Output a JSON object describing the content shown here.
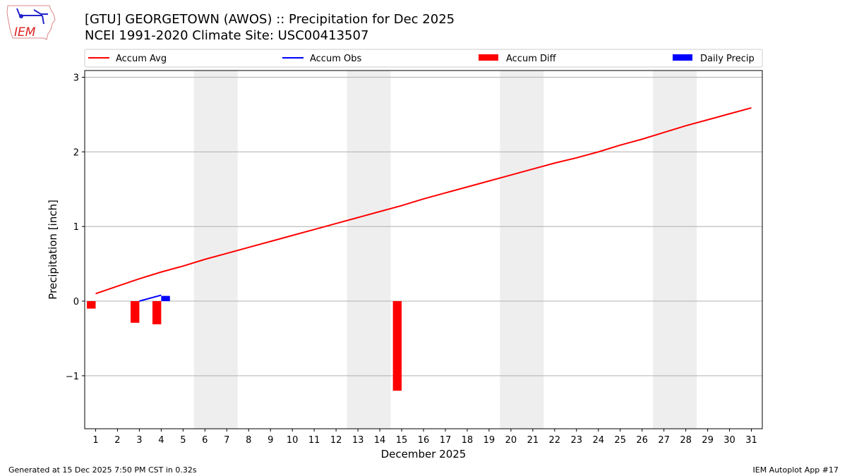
{
  "header": {
    "title": "[GTU] GEORGETOWN (AWOS) :: Precipitation for Dec 2025",
    "subtitle": "NCEI 1991-2020 Climate Site: USC00413507",
    "logo_text": "IEM"
  },
  "footer": {
    "left": "Generated at 15 Dec 2025 7:50 PM CST in 0.32s",
    "right": "IEM Autoplot App #17"
  },
  "chart_data": {
    "type": "line",
    "xlabel": "December 2025",
    "ylabel": "Precipitation [inch]",
    "xlim": [
      0.5,
      31.5
    ],
    "ylim": [
      -1.71,
      3.09
    ],
    "yticks": [
      -1,
      0,
      1,
      2,
      3
    ],
    "ytick_labels": [
      "−1",
      "0",
      "1",
      "2",
      "3"
    ],
    "x": [
      1,
      2,
      3,
      4,
      5,
      6,
      7,
      8,
      9,
      10,
      11,
      12,
      13,
      14,
      15,
      16,
      17,
      18,
      19,
      20,
      21,
      22,
      23,
      24,
      25,
      26,
      27,
      28,
      29,
      30,
      31
    ],
    "grid": "horizontal",
    "legend_placement": "top",
    "weekend_shading": [
      [
        5.5,
        7.5
      ],
      [
        12.5,
        14.5
      ],
      [
        19.5,
        21.5
      ],
      [
        26.5,
        28.5
      ]
    ],
    "series": [
      {
        "name": "Accum Avg",
        "type": "line",
        "color": "#ff0000",
        "values": [
          0.1,
          0.2,
          0.3,
          0.39,
          0.47,
          0.56,
          0.64,
          0.72,
          0.8,
          0.88,
          0.96,
          1.04,
          1.12,
          1.2,
          1.28,
          1.37,
          1.45,
          1.53,
          1.61,
          1.69,
          1.77,
          1.85,
          1.92,
          2.0,
          2.09,
          2.17,
          2.26,
          2.35,
          2.43,
          2.51,
          2.59
        ]
      },
      {
        "name": "Accum Obs",
        "type": "line",
        "color": "#0000ff",
        "points": [
          [
            3,
            0.0
          ],
          [
            4,
            0.08
          ]
        ]
      },
      {
        "name": "Accum Diff",
        "type": "bar",
        "color": "#ff0000",
        "points": [
          [
            1,
            -0.1
          ],
          [
            3,
            -0.29
          ],
          [
            4,
            -0.31
          ],
          [
            15,
            -1.2
          ]
        ]
      },
      {
        "name": "Daily Precip",
        "type": "bar",
        "color": "#0000ff",
        "points": [
          [
            4,
            0.07
          ]
        ]
      }
    ]
  }
}
